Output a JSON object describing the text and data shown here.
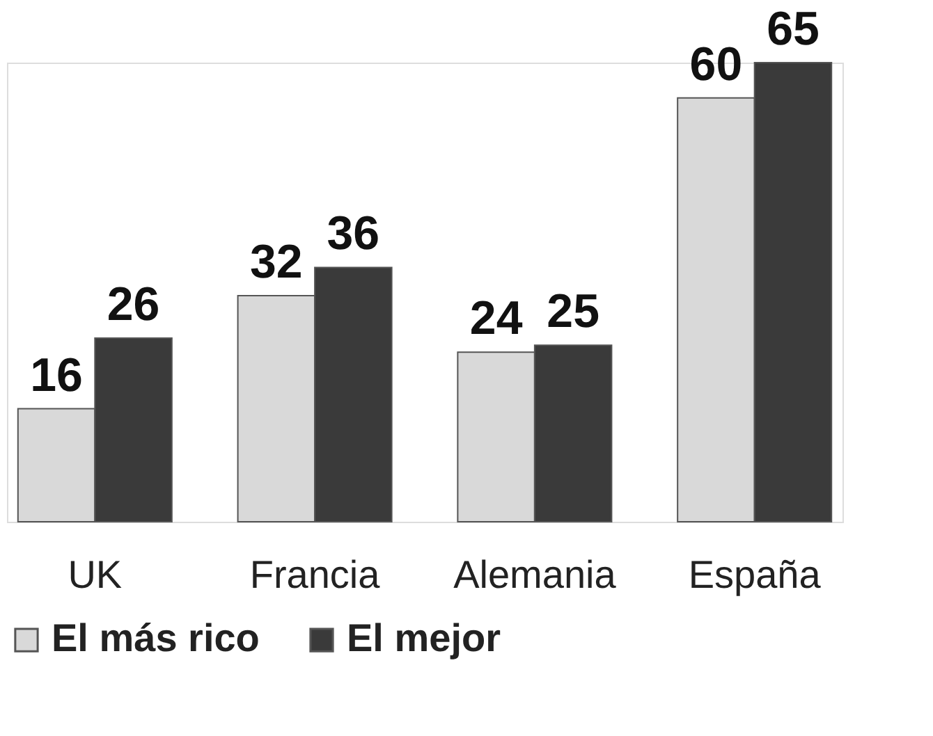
{
  "chart_data": {
    "type": "bar",
    "categories": [
      "UK",
      "Francia",
      "Alemania",
      "España"
    ],
    "series": [
      {
        "name": "El más rico",
        "color": "#d9d9d9",
        "values": [
          16,
          32,
          24,
          60
        ]
      },
      {
        "name": "El mejor",
        "color": "#3a3a3a",
        "values": [
          26,
          36,
          25,
          65
        ]
      }
    ],
    "data_labels": true,
    "legend": "bottom",
    "grid": false
  }
}
